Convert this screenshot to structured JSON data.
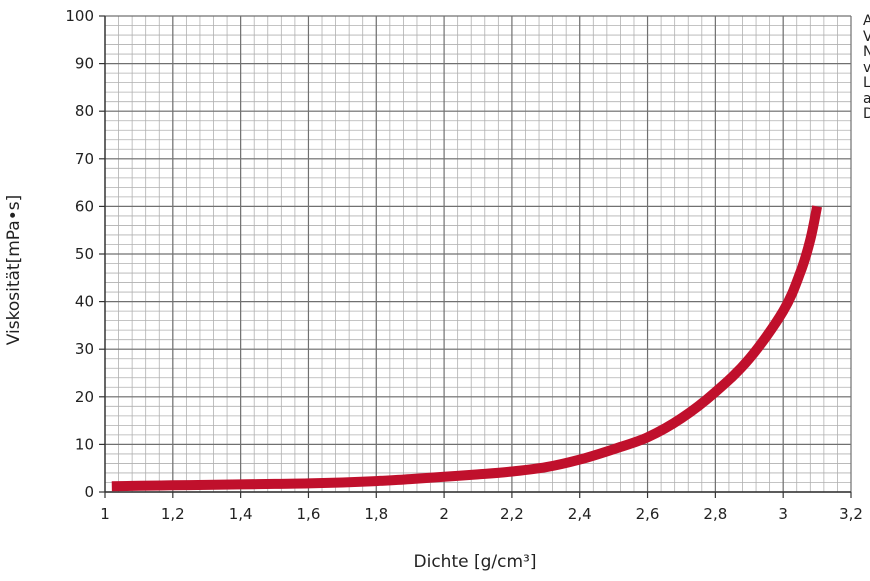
{
  "chart_data": {
    "type": "line",
    "xlabel": "Dichte [g/cm³]",
    "ylabel": "Viskosität[mPa•s]",
    "xlim": [
      1,
      3.2
    ],
    "ylim": [
      0,
      100
    ],
    "x_ticks": [
      "1",
      "1,2",
      "1,4",
      "1,6",
      "1,8",
      "2",
      "2,2",
      "2,4",
      "2,6",
      "2,8",
      "3",
      "3,2"
    ],
    "y_ticks": [
      "0",
      "10",
      "20",
      "30",
      "40",
      "50",
      "60",
      "70",
      "80",
      "90",
      "100"
    ],
    "grid": true,
    "line_color": "#c0102c",
    "series": [
      {
        "x": [
          1.02,
          1.1,
          1.2,
          1.3,
          1.4,
          1.5,
          1.6,
          1.7,
          1.8,
          1.9,
          2.0,
          2.1,
          2.2,
          2.3,
          2.4,
          2.5,
          2.6,
          2.7,
          2.8,
          2.9,
          3.0,
          3.05,
          3.08,
          3.1
        ],
        "y": [
          1.2,
          1.3,
          1.4,
          1.5,
          1.6,
          1.7,
          1.8,
          2.0,
          2.3,
          2.7,
          3.2,
          3.7,
          4.3,
          5.2,
          6.8,
          9.0,
          11.5,
          15.5,
          21.0,
          28.0,
          38.0,
          46.0,
          53.0,
          60.0
        ]
      }
    ]
  },
  "side_note_lines": [
    "A",
    "V",
    "N",
    "v",
    "L",
    "a",
    "D"
  ]
}
